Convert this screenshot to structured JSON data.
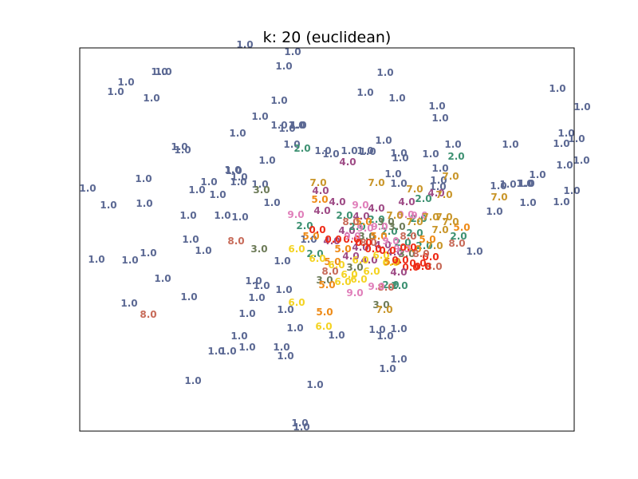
{
  "chart_data": {
    "type": "scatter",
    "title": "k: 20 (euclidean)",
    "xlabel": "",
    "ylabel": "",
    "xlim": [
      0,
      620
    ],
    "ylim": [
      0,
      480
    ],
    "grid": false,
    "axes_ticks": false,
    "label_colors": {
      "1.0": "#5b6893",
      "2.0": "#3d9172",
      "3.0": "#6d7b58",
      "4.0": "#9e4a85",
      "5.0": "#ee8a16",
      "6.0": "#f4d322",
      "7.0": "#c9962a",
      "8.0": "#c76a58",
      "9.0": "#e07fba",
      "0.0": "#ee2a16"
    },
    "points": [
      {
        "x": 207,
        "y": 484,
        "label": "1.0"
      },
      {
        "x": 267,
        "y": 475,
        "label": "1.0"
      },
      {
        "x": 256,
        "y": 457,
        "label": "1.0"
      },
      {
        "x": 58,
        "y": 437,
        "label": "1.0"
      },
      {
        "x": 45,
        "y": 425,
        "label": "1.0"
      },
      {
        "x": 90,
        "y": 417,
        "label": "1.0"
      },
      {
        "x": 100,
        "y": 450,
        "label": "1.0"
      },
      {
        "x": 105,
        "y": 450,
        "label": "1.0"
      },
      {
        "x": 383,
        "y": 449,
        "label": "1.0"
      },
      {
        "x": 358,
        "y": 424,
        "label": "1.0"
      },
      {
        "x": 398,
        "y": 417,
        "label": "1.0"
      },
      {
        "x": 250,
        "y": 414,
        "label": "1.0"
      },
      {
        "x": 448,
        "y": 407,
        "label": "1.0"
      },
      {
        "x": 452,
        "y": 392,
        "label": "1.0"
      },
      {
        "x": 599,
        "y": 429,
        "label": "1.0"
      },
      {
        "x": 630,
        "y": 406,
        "label": "1.0"
      },
      {
        "x": 610,
        "y": 373,
        "label": "1.0"
      },
      {
        "x": 604,
        "y": 360,
        "label": "1.0"
      },
      {
        "x": 623,
        "y": 366,
        "label": "1.0"
      },
      {
        "x": 629,
        "y": 339,
        "label": "1.0"
      },
      {
        "x": 608,
        "y": 333,
        "label": "1.0"
      },
      {
        "x": 226,
        "y": 394,
        "label": "1.0"
      },
      {
        "x": 250,
        "y": 383,
        "label": "1.0"
      },
      {
        "x": 272,
        "y": 383,
        "label": "1.0"
      },
      {
        "x": 260,
        "y": 379,
        "label": "1.0"
      },
      {
        "x": 274,
        "y": 383,
        "label": "1.0"
      },
      {
        "x": 198,
        "y": 373,
        "label": "1.0"
      },
      {
        "x": 266,
        "y": 359,
        "label": "1.0"
      },
      {
        "x": 125,
        "y": 356,
        "label": "1.0"
      },
      {
        "x": 129,
        "y": 352,
        "label": "1.0"
      },
      {
        "x": 440,
        "y": 347,
        "label": "1.0"
      },
      {
        "x": 468,
        "y": 359,
        "label": "1.0"
      },
      {
        "x": 381,
        "y": 364,
        "label": "1.0"
      },
      {
        "x": 400,
        "y": 348,
        "label": "1.0"
      },
      {
        "x": 402,
        "y": 342,
        "label": "1.0"
      },
      {
        "x": 540,
        "y": 359,
        "label": "1.0"
      },
      {
        "x": 305,
        "y": 351,
        "label": "1.0"
      },
      {
        "x": 315,
        "y": 347,
        "label": "1.0"
      },
      {
        "x": 338,
        "y": 351,
        "label": "1.0"
      },
      {
        "x": 358,
        "y": 351,
        "label": "1.0"
      },
      {
        "x": 361,
        "y": 350,
        "label": "1.0"
      },
      {
        "x": 235,
        "y": 339,
        "label": "1.0"
      },
      {
        "x": 452,
        "y": 329,
        "label": "1.0"
      },
      {
        "x": 450,
        "y": 314,
        "label": "1.0"
      },
      {
        "x": 193,
        "y": 326,
        "label": "1.0"
      },
      {
        "x": 80,
        "y": 316,
        "label": "1.0"
      },
      {
        "x": 192,
        "y": 327,
        "label": "1.0"
      },
      {
        "x": 200,
        "y": 318,
        "label": "1.0"
      },
      {
        "x": 199,
        "y": 312,
        "label": "1.0"
      },
      {
        "x": 226,
        "y": 309,
        "label": "1.0"
      },
      {
        "x": 162,
        "y": 312,
        "label": "1.0"
      },
      {
        "x": 147,
        "y": 302,
        "label": "1.0"
      },
      {
        "x": 173,
        "y": 296,
        "label": "1.0"
      },
      {
        "x": 241,
        "y": 286,
        "label": "1.0"
      },
      {
        "x": 10,
        "y": 304,
        "label": "1.0"
      },
      {
        "x": 36,
        "y": 283,
        "label": "1.0"
      },
      {
        "x": 81,
        "y": 285,
        "label": "1.0"
      },
      {
        "x": 393,
        "y": 322,
        "label": "1.0"
      },
      {
        "x": 400,
        "y": 310,
        "label": "1.0"
      },
      {
        "x": 449,
        "y": 306,
        "label": "1.0"
      },
      {
        "x": 525,
        "y": 307,
        "label": "1.0"
      },
      {
        "x": 537,
        "y": 309,
        "label": "1.0"
      },
      {
        "x": 558,
        "y": 310,
        "label": "1.0"
      },
      {
        "x": 560,
        "y": 310,
        "label": "1.0"
      },
      {
        "x": 574,
        "y": 321,
        "label": "1.0"
      },
      {
        "x": 562,
        "y": 286,
        "label": "1.0"
      },
      {
        "x": 604,
        "y": 287,
        "label": "1.0"
      },
      {
        "x": 617,
        "y": 301,
        "label": "1.0"
      },
      {
        "x": 520,
        "y": 275,
        "label": "1.0"
      },
      {
        "x": 136,
        "y": 270,
        "label": "1.0"
      },
      {
        "x": 179,
        "y": 270,
        "label": "1.0"
      },
      {
        "x": 201,
        "y": 268,
        "label": "1.0"
      },
      {
        "x": 139,
        "y": 240,
        "label": "1.0"
      },
      {
        "x": 155,
        "y": 226,
        "label": "1.0"
      },
      {
        "x": 86,
        "y": 223,
        "label": "1.0"
      },
      {
        "x": 21,
        "y": 215,
        "label": "1.0"
      },
      {
        "x": 63,
        "y": 214,
        "label": "1.0"
      },
      {
        "x": 254,
        "y": 213,
        "label": "1.0"
      },
      {
        "x": 287,
        "y": 240,
        "label": "1.0"
      },
      {
        "x": 495,
        "y": 225,
        "label": "1.0"
      },
      {
        "x": 104,
        "y": 191,
        "label": "1.0"
      },
      {
        "x": 137,
        "y": 168,
        "label": "1.0"
      },
      {
        "x": 62,
        "y": 160,
        "label": "1.0"
      },
      {
        "x": 218,
        "y": 188,
        "label": "1.0"
      },
      {
        "x": 228,
        "y": 182,
        "label": "1.0"
      },
      {
        "x": 256,
        "y": 177,
        "label": "1.0"
      },
      {
        "x": 222,
        "y": 167,
        "label": "1.0"
      },
      {
        "x": 258,
        "y": 152,
        "label": "1.0"
      },
      {
        "x": 210,
        "y": 147,
        "label": "1.0"
      },
      {
        "x": 270,
        "y": 129,
        "label": "1.0"
      },
      {
        "x": 322,
        "y": 120,
        "label": "1.0"
      },
      {
        "x": 200,
        "y": 119,
        "label": "1.0"
      },
      {
        "x": 210,
        "y": 105,
        "label": "1.0"
      },
      {
        "x": 253,
        "y": 105,
        "label": "1.0"
      },
      {
        "x": 258,
        "y": 94,
        "label": "1.0"
      },
      {
        "x": 186,
        "y": 100,
        "label": "1.0"
      },
      {
        "x": 400,
        "y": 128,
        "label": "1.0"
      },
      {
        "x": 373,
        "y": 127,
        "label": "1.0"
      },
      {
        "x": 383,
        "y": 119,
        "label": "1.0"
      },
      {
        "x": 171,
        "y": 100,
        "label": "1.0"
      },
      {
        "x": 400,
        "y": 90,
        "label": "1.0"
      },
      {
        "x": 386,
        "y": 78,
        "label": "1.0"
      },
      {
        "x": 142,
        "y": 63,
        "label": "1.0"
      },
      {
        "x": 295,
        "y": 58,
        "label": "1.0"
      },
      {
        "x": 276,
        "y": 10,
        "label": "1.0"
      },
      {
        "x": 278,
        "y": 5,
        "label": "1.0"
      },
      {
        "x": 279,
        "y": 354,
        "label": "2.0"
      },
      {
        "x": 472,
        "y": 344,
        "label": "2.0"
      },
      {
        "x": 282,
        "y": 257,
        "label": "2.0"
      },
      {
        "x": 431,
        "y": 291,
        "label": "2.0"
      },
      {
        "x": 425,
        "y": 266,
        "label": "2.0"
      },
      {
        "x": 295,
        "y": 222,
        "label": "2.0"
      },
      {
        "x": 390,
        "y": 183,
        "label": "2.0"
      },
      {
        "x": 401,
        "y": 182,
        "label": "2.0"
      },
      {
        "x": 475,
        "y": 244,
        "label": "2.0"
      },
      {
        "x": 228,
        "y": 302,
        "label": "3.0"
      },
      {
        "x": 225,
        "y": 228,
        "label": "3.0"
      },
      {
        "x": 307,
        "y": 189,
        "label": "3.0"
      },
      {
        "x": 378,
        "y": 158,
        "label": "3.0"
      },
      {
        "x": 336,
        "y": 337,
        "label": "4.0"
      },
      {
        "x": 302,
        "y": 301,
        "label": "4.0"
      },
      {
        "x": 323,
        "y": 287,
        "label": "4.0"
      },
      {
        "x": 372,
        "y": 279,
        "label": "4.0"
      },
      {
        "x": 410,
        "y": 287,
        "label": "4.0"
      },
      {
        "x": 447,
        "y": 298,
        "label": "4.0"
      },
      {
        "x": 304,
        "y": 276,
        "label": "4.0"
      },
      {
        "x": 353,
        "y": 269,
        "label": "4.0"
      },
      {
        "x": 335,
        "y": 251,
        "label": "4.0"
      },
      {
        "x": 316,
        "y": 238,
        "label": "4.0"
      },
      {
        "x": 301,
        "y": 290,
        "label": "5.0"
      },
      {
        "x": 290,
        "y": 244,
        "label": "5.0"
      },
      {
        "x": 479,
        "y": 255,
        "label": "5.0"
      },
      {
        "x": 310,
        "y": 183,
        "label": "5.0"
      },
      {
        "x": 307,
        "y": 149,
        "label": "5.0"
      },
      {
        "x": 317,
        "y": 212,
        "label": "5.0"
      },
      {
        "x": 272,
        "y": 228,
        "label": "6.0"
      },
      {
        "x": 298,
        "y": 216,
        "label": "6.0"
      },
      {
        "x": 272,
        "y": 161,
        "label": "6.0"
      },
      {
        "x": 306,
        "y": 131,
        "label": "6.0"
      },
      {
        "x": 330,
        "y": 187,
        "label": "6.0"
      },
      {
        "x": 390,
        "y": 211,
        "label": "6.0"
      },
      {
        "x": 299,
        "y": 311,
        "label": "7.0"
      },
      {
        "x": 372,
        "y": 311,
        "label": "7.0"
      },
      {
        "x": 420,
        "y": 303,
        "label": "7.0"
      },
      {
        "x": 457,
        "y": 296,
        "label": "7.0"
      },
      {
        "x": 465,
        "y": 319,
        "label": "7.0"
      },
      {
        "x": 526,
        "y": 293,
        "label": "7.0"
      },
      {
        "x": 457,
        "y": 268,
        "label": "7.0"
      },
      {
        "x": 382,
        "y": 152,
        "label": "7.0"
      },
      {
        "x": 196,
        "y": 238,
        "label": "8.0"
      },
      {
        "x": 473,
        "y": 235,
        "label": "8.0"
      },
      {
        "x": 314,
        "y": 200,
        "label": "8.0"
      },
      {
        "x": 444,
        "y": 206,
        "label": "8.0"
      },
      {
        "x": 384,
        "y": 180,
        "label": "8.0"
      },
      {
        "x": 86,
        "y": 146,
        "label": "8.0"
      },
      {
        "x": 271,
        "y": 271,
        "label": "9.0"
      },
      {
        "x": 409,
        "y": 271,
        "label": "9.0"
      },
      {
        "x": 352,
        "y": 283,
        "label": "9.0"
      },
      {
        "x": 345,
        "y": 173,
        "label": "9.0"
      },
      {
        "x": 372,
        "y": 181,
        "label": "9.0"
      },
      {
        "x": 426,
        "y": 270,
        "label": "9.0"
      },
      {
        "x": 298,
        "y": 252,
        "label": "0.0"
      },
      {
        "x": 318,
        "y": 240,
        "label": "0.0"
      },
      {
        "x": 341,
        "y": 240,
        "label": "0.0"
      },
      {
        "x": 440,
        "y": 218,
        "label": "0.0"
      },
      {
        "x": 415,
        "y": 205,
        "label": "0.0"
      },
      {
        "x": 424,
        "y": 210,
        "label": "0.0"
      },
      {
        "x": 340,
        "y": 219,
        "label": "4.0"
      },
      {
        "x": 352,
        "y": 230,
        "label": "4.0"
      },
      {
        "x": 363,
        "y": 214,
        "label": "4.0"
      },
      {
        "x": 380,
        "y": 233,
        "label": "4.0"
      },
      {
        "x": 395,
        "y": 224,
        "label": "4.0"
      },
      {
        "x": 400,
        "y": 199,
        "label": "4.0"
      },
      {
        "x": 332,
        "y": 270,
        "label": "2.0"
      },
      {
        "x": 348,
        "y": 256,
        "label": "2.0"
      },
      {
        "x": 372,
        "y": 265,
        "label": "2.0"
      },
      {
        "x": 388,
        "y": 250,
        "label": "2.0"
      },
      {
        "x": 405,
        "y": 236,
        "label": "2.0"
      },
      {
        "x": 420,
        "y": 248,
        "label": "2.0"
      },
      {
        "x": 432,
        "y": 232,
        "label": "2.0"
      },
      {
        "x": 360,
        "y": 244,
        "label": "3.0"
      },
      {
        "x": 384,
        "y": 262,
        "label": "3.0"
      },
      {
        "x": 410,
        "y": 222,
        "label": "3.0"
      },
      {
        "x": 345,
        "y": 205,
        "label": "3.0"
      },
      {
        "x": 398,
        "y": 256,
        "label": "3.0"
      },
      {
        "x": 330,
        "y": 228,
        "label": "5.0"
      },
      {
        "x": 356,
        "y": 262,
        "label": "5.0"
      },
      {
        "x": 375,
        "y": 244,
        "label": "5.0"
      },
      {
        "x": 392,
        "y": 212,
        "label": "5.0"
      },
      {
        "x": 418,
        "y": 228,
        "label": "5.0"
      },
      {
        "x": 436,
        "y": 240,
        "label": "5.0"
      },
      {
        "x": 322,
        "y": 208,
        "label": "6.0"
      },
      {
        "x": 338,
        "y": 196,
        "label": "6.0"
      },
      {
        "x": 352,
        "y": 214,
        "label": "6.0"
      },
      {
        "x": 366,
        "y": 200,
        "label": "6.0"
      },
      {
        "x": 378,
        "y": 220,
        "label": "6.0"
      },
      {
        "x": 350,
        "y": 190,
        "label": "6.0"
      },
      {
        "x": 395,
        "y": 270,
        "label": "7.0"
      },
      {
        "x": 420,
        "y": 262,
        "label": "7.0"
      },
      {
        "x": 440,
        "y": 268,
        "label": "7.0"
      },
      {
        "x": 452,
        "y": 252,
        "label": "7.0"
      },
      {
        "x": 465,
        "y": 262,
        "label": "7.0"
      },
      {
        "x": 445,
        "y": 232,
        "label": "7.0"
      },
      {
        "x": 340,
        "y": 262,
        "label": "8.0"
      },
      {
        "x": 362,
        "y": 236,
        "label": "8.0"
      },
      {
        "x": 412,
        "y": 244,
        "label": "8.0"
      },
      {
        "x": 428,
        "y": 222,
        "label": "8.0"
      },
      {
        "x": 358,
        "y": 254,
        "label": "9.0"
      },
      {
        "x": 376,
        "y": 256,
        "label": "9.0"
      },
      {
        "x": 390,
        "y": 238,
        "label": "9.0"
      },
      {
        "x": 404,
        "y": 228,
        "label": "9.0"
      },
      {
        "x": 342,
        "y": 244,
        "label": "9.0"
      },
      {
        "x": 386,
        "y": 226,
        "label": "0.0"
      },
      {
        "x": 402,
        "y": 214,
        "label": "0.0"
      },
      {
        "x": 412,
        "y": 230,
        "label": "0.0"
      },
      {
        "x": 430,
        "y": 206,
        "label": "0.0"
      },
      {
        "x": 368,
        "y": 228,
        "label": "0.0"
      },
      {
        "x": 356,
        "y": 236,
        "label": "0.0"
      }
    ]
  }
}
